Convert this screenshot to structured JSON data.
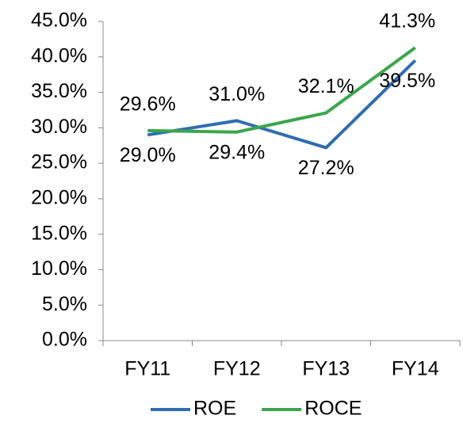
{
  "chart_data": {
    "type": "line",
    "categories": [
      "FY11",
      "FY12",
      "FY13",
      "FY14"
    ],
    "series": [
      {
        "name": "ROE",
        "color": "#2e6db4",
        "values": [
          29.0,
          31.0,
          27.2,
          39.5
        ],
        "value_labels": [
          "29.0%",
          "31.0%",
          "27.2%",
          "39.5%"
        ]
      },
      {
        "name": "ROCE",
        "color": "#3aa64c",
        "values": [
          29.6,
          29.4,
          32.1,
          41.3
        ],
        "value_labels": [
          "29.6%",
          "29.4%",
          "32.1%",
          "41.3%"
        ]
      }
    ],
    "ylim": [
      0,
      45
    ],
    "yticks": [
      {
        "value": 0,
        "label": "0.0%"
      },
      {
        "value": 5,
        "label": "5.0%"
      },
      {
        "value": 10,
        "label": "10.0%"
      },
      {
        "value": 15,
        "label": "15.0%"
      },
      {
        "value": 20,
        "label": "20.0%"
      },
      {
        "value": 25,
        "label": "25.0%"
      },
      {
        "value": 30,
        "label": "30.0%"
      },
      {
        "value": 35,
        "label": "35.0%"
      },
      {
        "value": 40,
        "label": "40.0%"
      },
      {
        "value": 45,
        "label": "45.0%"
      }
    ],
    "grid": false,
    "legend": "bottom"
  }
}
